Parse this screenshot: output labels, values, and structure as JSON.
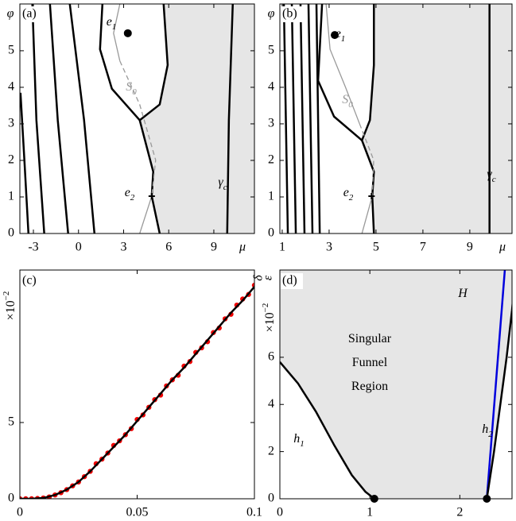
{
  "chart_data": [
    {
      "type": "phase",
      "panel_label": "(a)",
      "xlabel": "μ",
      "ylabel": "φ",
      "xlim": [
        -3.9,
        11.7
      ],
      "ylim": [
        0,
        6.28
      ],
      "xticks": [
        -3,
        0,
        3,
        6,
        9
      ],
      "yticks": [
        0,
        1,
        2,
        3,
        4,
        5
      ],
      "region": {
        "color": "#e6e6e6",
        "x": [
          5.66,
          11.7,
          11.7,
          5.4,
          4.87,
          4.97,
          4.07,
          5.4,
          5.93
        ],
        "y": [
          6.28,
          6.28,
          0,
          0,
          1.02,
          1.69,
          3.1,
          3.53,
          4.61
        ]
      },
      "series": [
        {
          "style": "thick",
          "color": "#000000",
          "x": [
            -3.86,
            -3.6,
            -3.33
          ],
          "values": [
            3.85,
            2.01,
            0
          ]
        },
        {
          "style": "thick",
          "color": "#000000",
          "x": [
            -3.07,
            -2.8,
            -2.28
          ],
          "values": [
            6.28,
            3.1,
            0
          ]
        },
        {
          "style": "thick",
          "color": "#000000",
          "x": [
            -1.9,
            -1.38,
            -0.69
          ],
          "values": [
            6.28,
            3.1,
            0
          ]
        },
        {
          "style": "thick",
          "color": "#000000",
          "x": [
            -0.58,
            0.37,
            1.06
          ],
          "values": [
            6.28,
            3.1,
            0
          ]
        },
        {
          "style": "thick",
          "color": "#000000",
          "x": [
            1.59,
            1.43,
            2.22,
            4.07,
            5.4,
            5.93,
            5.66
          ],
          "values": [
            6.28,
            5.04,
            3.96,
            3.1,
            3.53,
            4.61,
            6.28
          ]
        },
        {
          "style": "thick",
          "color": "#000000",
          "x": [
            4.07,
            4.97,
            4.87,
            5.4
          ],
          "values": [
            3.1,
            1.69,
            1.02,
            0
          ]
        },
        {
          "style": "thick",
          "color": "#000000",
          "x": [
            9.89,
            10.0,
            10.26
          ],
          "values": [
            0,
            3.1,
            6.28
          ]
        },
        {
          "style": "thin",
          "color": "#999999",
          "x": [
            2.75,
            2.33,
            2.75
          ],
          "values": [
            6.28,
            5.48,
            4.72
          ]
        },
        {
          "style": "dashed",
          "color": "#999999",
          "x": [
            2.75,
            4.07,
            5.13,
            4.87
          ],
          "values": [
            4.72,
            3.53,
            2.01,
            1.02
          ]
        },
        {
          "style": "thin",
          "color": "#999999",
          "x": [
            4.87,
            4.07
          ],
          "values": [
            1.02,
            0
          ]
        },
        {
          "style": "dot",
          "color": "#000000",
          "x": [
            3.28
          ],
          "values": [
            5.48
          ]
        },
        {
          "style": "plus",
          "color": "#000000",
          "x": [
            4.87
          ],
          "values": [
            1.02
          ]
        }
      ],
      "annotations": [
        {
          "text": "e",
          "sub": "1"
        },
        {
          "text": "S",
          "sub": "0",
          "color": "#999999"
        },
        {
          "text": "e",
          "sub": "2"
        },
        {
          "text": "γ",
          "sub": "c"
        }
      ]
    },
    {
      "type": "phase",
      "panel_label": "(b)",
      "xlabel": "μ",
      "ylabel": "φ",
      "xlim": [
        0.9,
        10.8
      ],
      "ylim": [
        0,
        6.28
      ],
      "xticks": [
        1,
        3,
        5,
        7,
        9
      ],
      "yticks": [
        0,
        1,
        2,
        3,
        4,
        5
      ],
      "region": {
        "color": "#e6e6e6",
        "x": [
          4.91,
          10.8,
          10.8,
          4.91,
          4.84,
          4.91,
          4.4,
          4.74,
          4.91
        ],
        "y": [
          6.28,
          6.28,
          0,
          0,
          1.02,
          1.69,
          2.55,
          3.1,
          4.61
        ]
      },
      "series": [
        {
          "style": "thick",
          "color": "#000000",
          "x": [
            1.07,
            1.24
          ],
          "values": [
            6.28,
            0
          ]
        },
        {
          "style": "thick",
          "color": "#000000",
          "x": [
            1.41,
            1.58
          ],
          "values": [
            6.28,
            0
          ]
        },
        {
          "style": "thick",
          "color": "#000000",
          "x": [
            1.78,
            1.95
          ],
          "values": [
            6.28,
            0
          ]
        },
        {
          "style": "thick",
          "color": "#000000",
          "x": [
            2.12,
            2.29
          ],
          "values": [
            6.28,
            0
          ]
        },
        {
          "style": "thick",
          "color": "#000000",
          "x": [
            2.46,
            2.6
          ],
          "values": [
            6.28,
            0
          ]
        },
        {
          "style": "thick",
          "color": "#000000",
          "x": [
            2.7,
            2.53,
            3.21,
            4.4,
            4.74,
            4.91,
            4.91
          ],
          "values": [
            6.28,
            4.18,
            3.2,
            2.55,
            3.1,
            4.61,
            6.28
          ]
        },
        {
          "style": "thick",
          "color": "#000000",
          "x": [
            4.4,
            4.91,
            4.84,
            4.91
          ],
          "values": [
            2.55,
            1.69,
            1.02,
            0
          ]
        },
        {
          "style": "thick",
          "color": "#000000",
          "x": [
            9.84,
            9.84
          ],
          "values": [
            0,
            6.28
          ]
        },
        {
          "style": "thin",
          "color": "#999999",
          "x": [
            2.87,
            3.04,
            3.7,
            4.3
          ],
          "values": [
            6.28,
            5.04,
            4.0,
            3.0
          ]
        },
        {
          "style": "dashed",
          "color": "#999999",
          "x": [
            4.3,
            4.9,
            4.84
          ],
          "values": [
            3.0,
            2.01,
            1.02
          ]
        },
        {
          "style": "thin",
          "color": "#999999",
          "x": [
            4.84,
            4.4
          ],
          "values": [
            1.02,
            0
          ]
        },
        {
          "style": "dot",
          "color": "#000000",
          "x": [
            3.24
          ],
          "values": [
            5.43
          ]
        },
        {
          "style": "plus",
          "color": "#000000",
          "x": [
            4.81
          ],
          "values": [
            1.02
          ]
        }
      ],
      "annotations": [
        {
          "text": "e",
          "sub": "1"
        },
        {
          "text": "S",
          "sub": "0",
          "color": "#999999"
        },
        {
          "text": "e",
          "sub": "2"
        },
        {
          "text": "γ",
          "sub": "c"
        }
      ]
    },
    {
      "type": "scatter",
      "panel_label": "(c)",
      "ylabel": "δ",
      "multiplier": {
        "text": "×10",
        "sup": "−2"
      },
      "xlim": [
        0,
        0.1
      ],
      "ylim": [
        0,
        15
      ],
      "xticks": [
        0,
        0.05,
        0.1
      ],
      "yticks": [
        0,
        5
      ],
      "series": [
        {
          "style": "marker",
          "color": "#ee0000",
          "x": [
            0,
            0.0025,
            0.005,
            0.0075,
            0.01,
            0.0125,
            0.015,
            0.0175,
            0.02,
            0.0225,
            0.025,
            0.0275,
            0.03,
            0.0325,
            0.035,
            0.0375,
            0.04,
            0.0425,
            0.045,
            0.0475,
            0.05,
            0.0525,
            0.055,
            0.0575,
            0.06,
            0.0625,
            0.065,
            0.0675,
            0.07,
            0.0725,
            0.075,
            0.0775,
            0.08,
            0.0825,
            0.085,
            0.0875,
            0.09,
            0.0925,
            0.095,
            0.0975,
            0.1
          ],
          "values": [
            0,
            0,
            0,
            0.02,
            0.05,
            0.12,
            0.25,
            0.4,
            0.6,
            0.85,
            1.1,
            1.45,
            1.8,
            2.3,
            2.6,
            3.0,
            3.5,
            3.8,
            4.2,
            4.6,
            5.2,
            5.5,
            6.0,
            6.5,
            6.8,
            7.4,
            7.8,
            8.1,
            8.7,
            9.0,
            9.6,
            9.9,
            10.3,
            10.9,
            11.2,
            11.8,
            12.1,
            12.7,
            13.1,
            13.4,
            14.0
          ]
        },
        {
          "style": "thick",
          "color": "#000000",
          "x": [
            0,
            0.005,
            0.01,
            0.015,
            0.02,
            0.025,
            0.03,
            0.035,
            0.04,
            0.045,
            0.05,
            0.055,
            0.06,
            0.065,
            0.07,
            0.075,
            0.08,
            0.085,
            0.09,
            0.095,
            0.1
          ],
          "values": [
            0,
            0,
            0.05,
            0.25,
            0.6,
            1.1,
            1.8,
            2.6,
            3.4,
            4.2,
            5.1,
            6.0,
            6.9,
            7.8,
            8.6,
            9.5,
            10.4,
            11.3,
            12.2,
            13.0,
            13.9
          ]
        }
      ]
    },
    {
      "type": "line",
      "panel_label": "(d)",
      "ylabel": "ε",
      "multiplier": {
        "text": "×10",
        "sup": "−2"
      },
      "xlim": [
        0,
        2.58
      ],
      "ylim": [
        0,
        9.7
      ],
      "xticks": [
        0,
        1,
        2
      ],
      "yticks": [
        0,
        2,
        4,
        6
      ],
      "region": {
        "color": "#e6e6e6",
        "x": [
          0,
          0,
          0.2,
          0.4,
          0.6,
          0.8,
          0.95,
          1.05,
          2.3,
          2.38,
          2.45,
          2.52,
          2.58,
          2.62
        ],
        "y": [
          9.7,
          5.8,
          4.9,
          3.7,
          2.3,
          1.0,
          0.3,
          0,
          0,
          2,
          4,
          6,
          8,
          9.7
        ]
      },
      "series": [
        {
          "style": "thick",
          "color": "#000000",
          "x": [
            0,
            0.2,
            0.4,
            0.6,
            0.8,
            0.95,
            1.05
          ],
          "values": [
            5.8,
            4.9,
            3.7,
            2.3,
            1.0,
            0.3,
            0
          ]
        },
        {
          "style": "thick",
          "color": "#0000dd",
          "x": [
            2.3,
            2.5
          ],
          "values": [
            0,
            9.7
          ]
        },
        {
          "style": "thick",
          "color": "#000000",
          "x": [
            2.3,
            2.38,
            2.45,
            2.52,
            2.58,
            2.62
          ],
          "values": [
            0,
            2,
            4,
            6,
            8,
            9.7
          ]
        },
        {
          "style": "dot",
          "color": "#000000",
          "x": [
            1.05,
            2.3
          ],
          "values": [
            0,
            0
          ]
        }
      ],
      "annotations": [
        {
          "text": "Singular"
        },
        {
          "text": "Funnel"
        },
        {
          "text": "Region"
        },
        {
          "text": "H"
        },
        {
          "text": "h",
          "sub": "1"
        },
        {
          "text": "h",
          "sub": "2"
        }
      ]
    }
  ]
}
